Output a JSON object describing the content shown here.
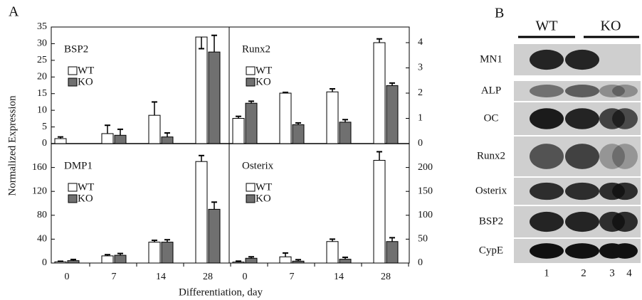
{
  "figure": {
    "panel_a": "A",
    "panel_b": "B",
    "ylabel": "Normalized Expression",
    "xlabel": "Differentiation, day"
  },
  "chart_data": [
    {
      "type": "bar",
      "title": "BSP2",
      "ylim": [
        0,
        35
      ],
      "yticks": [
        0,
        5,
        10,
        15,
        20,
        25,
        30,
        35
      ],
      "series": [
        {
          "name": "WT",
          "color": "#ffffff",
          "values": [
            1.5,
            3,
            8.5,
            32
          ],
          "errors": [
            0.5,
            2.5,
            4,
            3.5
          ]
        },
        {
          "name": "KO",
          "color": "#707070",
          "values": [
            null,
            2.5,
            2,
            27.5
          ],
          "errors": [
            null,
            1.8,
            1.2,
            5
          ]
        }
      ]
    },
    {
      "type": "bar",
      "title": "Runx2",
      "ylim": [
        0,
        4.62
      ],
      "yticks": [
        0,
        1,
        2,
        3,
        4
      ],
      "series": [
        {
          "name": "WT",
          "color": "#ffffff",
          "values": [
            1.0,
            2.0,
            2.05,
            4.0
          ],
          "errors": [
            0.08,
            0.03,
            0.12,
            0.15
          ]
        },
        {
          "name": "KO",
          "color": "#707070",
          "values": [
            1.6,
            0.75,
            0.85,
            2.3
          ],
          "errors": [
            0.08,
            0.07,
            0.1,
            0.1
          ]
        }
      ]
    },
    {
      "type": "bar",
      "title": "DMP1",
      "categories": [
        "0",
        "7",
        "14",
        "28"
      ],
      "ylim": [
        0,
        200
      ],
      "yticks": [
        0,
        40,
        80,
        120,
        160
      ],
      "series": [
        {
          "name": "WT",
          "color": "#ffffff",
          "values": [
            2,
            12,
            35,
            170
          ],
          "errors": [
            1,
            2,
            3,
            10
          ]
        },
        {
          "name": "KO",
          "color": "#707070",
          "values": [
            4,
            13,
            35,
            90
          ],
          "errors": [
            2,
            3,
            4,
            12
          ]
        }
      ]
    },
    {
      "type": "bar",
      "title": "Osterix",
      "categories": [
        "0",
        "7",
        "14",
        "28"
      ],
      "ylim": [
        0,
        250
      ],
      "yticks": [
        0,
        50,
        100,
        150,
        200
      ],
      "series": [
        {
          "name": "WT",
          "color": "#ffffff",
          "values": [
            2,
            13,
            45,
            215
          ],
          "errors": [
            2,
            8,
            5,
            18
          ]
        },
        {
          "name": "KO",
          "color": "#707070",
          "values": [
            10,
            4,
            8,
            45
          ],
          "errors": [
            3,
            3,
            4,
            8
          ]
        }
      ]
    }
  ],
  "blot": {
    "groups": [
      "WT",
      "KO"
    ],
    "rows": [
      "MN1",
      "ALP",
      "OC",
      "Runx2",
      "Osterix",
      "BSP2",
      "CypE"
    ],
    "lanes": [
      "1",
      "2",
      "3",
      "4"
    ]
  }
}
